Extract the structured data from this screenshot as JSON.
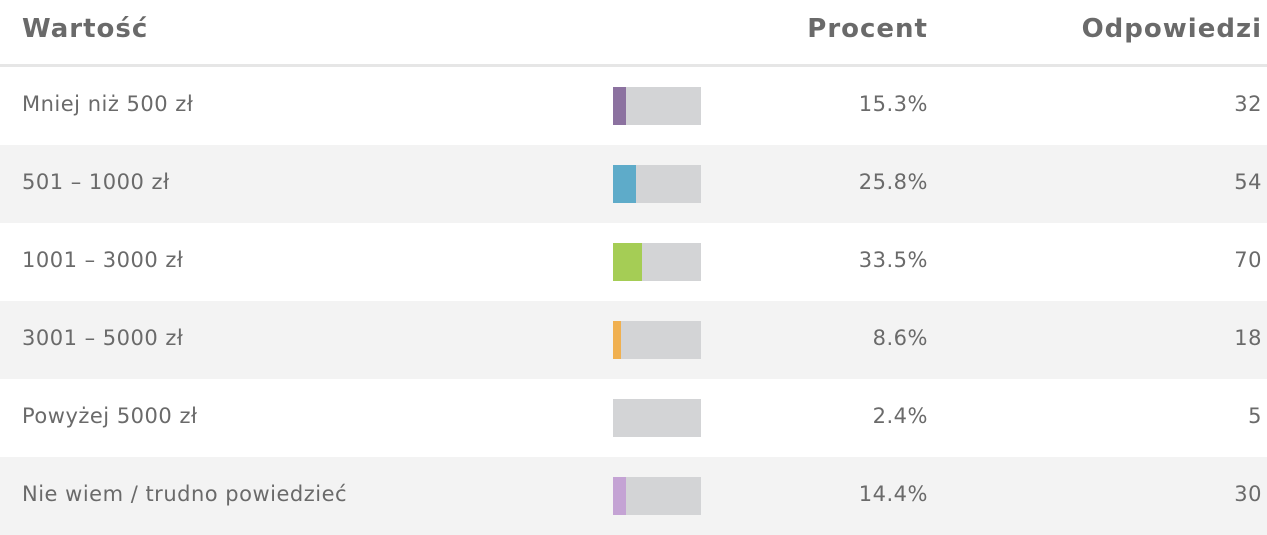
{
  "header": {
    "label": "Wartość",
    "percent": "Procent",
    "count": "Odpowiedzi"
  },
  "rows": [
    {
      "label": "Mniej niż 500 zł",
      "percent": 15.3,
      "percent_label": "15.3%",
      "count": 32,
      "color": "#8c72a0"
    },
    {
      "label": "501 – 1000 zł",
      "percent": 25.8,
      "percent_label": "25.8%",
      "count": 54,
      "color": "#5eabc9"
    },
    {
      "label": "1001 – 3000 zł",
      "percent": 33.5,
      "percent_label": "33.5%",
      "count": 70,
      "color": "#a5cd55"
    },
    {
      "label": "3001 – 5000 zł",
      "percent": 8.6,
      "percent_label": "8.6%",
      "count": 18,
      "color": "#f0b050"
    },
    {
      "label": "Powyżej 5000 zł",
      "percent": 2.4,
      "percent_label": "2.4%",
      "count": 5,
      "color": "#d3d4d6"
    },
    {
      "label": "Nie wiem / trudno powiedzieć",
      "percent": 14.4,
      "percent_label": "14.4%",
      "count": 30,
      "color": "#c4a3d4"
    }
  ]
}
